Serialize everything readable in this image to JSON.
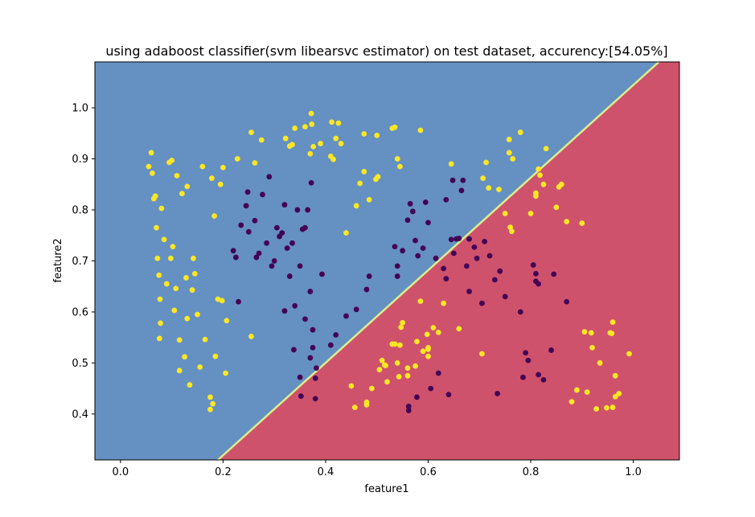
{
  "chart_data": {
    "type": "scatter",
    "title": "using adaboost classifier(svm libearsvc estimator) on test dataset, accurency:[54.05%]",
    "xlabel": "feature1",
    "ylabel": "feature2",
    "xlim": [
      -0.05,
      1.09
    ],
    "ylim": [
      0.31,
      1.09
    ],
    "xticks": [
      0.0,
      0.2,
      0.4,
      0.6,
      0.8,
      1.0
    ],
    "xtick_labels": [
      "0.0",
      "0.2",
      "0.4",
      "0.6",
      "0.8",
      "1.0"
    ],
    "yticks": [
      0.4,
      0.5,
      0.6,
      0.7,
      0.8,
      0.9,
      1.0
    ],
    "ytick_labels": [
      "0.4",
      "0.5",
      "0.6",
      "0.7",
      "0.8",
      "0.9",
      "1.0"
    ],
    "grid": false,
    "decision_regions": {
      "boundary_line": [
        [
          0.19,
          0.31
        ],
        [
          1.05,
          1.09
        ]
      ],
      "upper_left_color": "#6590c2",
      "lower_right_color": "#cf526d",
      "boundary_color": "#d9ef8b"
    },
    "series": [
      {
        "color": "#fde725",
        "points": [
          [
            0.055,
            0.885
          ],
          [
            0.06,
            0.912
          ],
          [
            0.062,
            0.872
          ],
          [
            0.065,
            0.822
          ],
          [
            0.068,
            0.827
          ],
          [
            0.07,
            0.765
          ],
          [
            0.072,
            0.705
          ],
          [
            0.075,
            0.672
          ],
          [
            0.077,
            0.625
          ],
          [
            0.078,
            0.578
          ],
          [
            0.076,
            0.548
          ],
          [
            0.085,
            0.742
          ],
          [
            0.08,
            0.803
          ],
          [
            0.09,
            0.655
          ],
          [
            0.095,
            0.893
          ],
          [
            0.098,
            0.705
          ],
          [
            0.1,
            0.897
          ],
          [
            0.102,
            0.728
          ],
          [
            0.105,
            0.603
          ],
          [
            0.108,
            0.646
          ],
          [
            0.11,
            0.867
          ],
          [
            0.115,
            0.545
          ],
          [
            0.115,
            0.485
          ],
          [
            0.12,
            0.832
          ],
          [
            0.125,
            0.512
          ],
          [
            0.128,
            0.667
          ],
          [
            0.13,
            0.587
          ],
          [
            0.13,
            0.846
          ],
          [
            0.135,
            0.457
          ],
          [
            0.14,
            0.643
          ],
          [
            0.142,
            0.705
          ],
          [
            0.145,
            0.675
          ],
          [
            0.15,
            0.595
          ],
          [
            0.155,
            0.492
          ],
          [
            0.16,
            0.885
          ],
          [
            0.165,
            0.546
          ],
          [
            0.175,
            0.433
          ],
          [
            0.175,
            0.409
          ],
          [
            0.178,
            0.862
          ],
          [
            0.18,
            0.42
          ],
          [
            0.183,
            0.788
          ],
          [
            0.185,
            0.513
          ],
          [
            0.19,
            0.625
          ],
          [
            0.195,
            0.85
          ],
          [
            0.198,
            0.622
          ],
          [
            0.2,
            0.883
          ],
          [
            0.205,
            0.48
          ],
          [
            0.207,
            0.583
          ],
          [
            0.228,
            0.9
          ],
          [
            0.255,
            0.552
          ],
          [
            0.255,
            0.952
          ],
          [
            0.262,
            0.892
          ],
          [
            0.275,
            0.937
          ],
          [
            0.322,
            0.94
          ],
          [
            0.33,
            0.925
          ],
          [
            0.335,
            0.928
          ],
          [
            0.34,
            0.96
          ],
          [
            0.36,
            0.963
          ],
          [
            0.37,
            0.91
          ],
          [
            0.372,
            0.989
          ],
          [
            0.373,
            0.968
          ],
          [
            0.376,
            0.924
          ],
          [
            0.39,
            0.93
          ],
          [
            0.41,
            0.905
          ],
          [
            0.412,
            0.972
          ],
          [
            0.415,
            0.899
          ],
          [
            0.42,
            0.94
          ],
          [
            0.425,
            0.97
          ],
          [
            0.43,
            0.93
          ],
          [
            0.44,
            0.755
          ],
          [
            0.46,
            0.808
          ],
          [
            0.467,
            0.852
          ],
          [
            0.475,
            0.949
          ],
          [
            0.475,
            0.875
          ],
          [
            0.485,
            0.82
          ],
          [
            0.498,
            0.86
          ],
          [
            0.5,
            0.946
          ],
          [
            0.502,
            0.865
          ],
          [
            0.53,
            0.96
          ],
          [
            0.535,
            0.962
          ],
          [
            0.54,
            0.9
          ],
          [
            0.545,
            0.885
          ],
          [
            0.585,
            0.956
          ],
          [
            0.45,
            0.455
          ],
          [
            0.457,
            0.413
          ],
          [
            0.48,
            0.423
          ],
          [
            0.48,
            0.418
          ],
          [
            0.49,
            0.45
          ],
          [
            0.505,
            0.487
          ],
          [
            0.51,
            0.505
          ],
          [
            0.515,
            0.496
          ],
          [
            0.517,
            0.495
          ],
          [
            0.52,
            0.463
          ],
          [
            0.53,
            0.537
          ],
          [
            0.535,
            0.537
          ],
          [
            0.54,
            0.5
          ],
          [
            0.543,
            0.473
          ],
          [
            0.545,
            0.535
          ],
          [
            0.547,
            0.57
          ],
          [
            0.55,
            0.579
          ],
          [
            0.56,
            0.49
          ],
          [
            0.56,
            0.475
          ],
          [
            0.575,
            0.494
          ],
          [
            0.578,
            0.542
          ],
          [
            0.585,
            0.621
          ],
          [
            0.59,
            0.523
          ],
          [
            0.598,
            0.556
          ],
          [
            0.6,
            0.527
          ],
          [
            0.6,
            0.53
          ],
          [
            0.6,
            0.513
          ],
          [
            0.61,
            0.569
          ],
          [
            0.62,
            0.56
          ],
          [
            0.63,
            0.617
          ],
          [
            0.645,
            0.89
          ],
          [
            0.66,
            0.567
          ],
          [
            0.705,
            0.518
          ],
          [
            0.707,
            0.862
          ],
          [
            0.713,
            0.893
          ],
          [
            0.718,
            0.843
          ],
          [
            0.738,
            0.84
          ],
          [
            0.75,
            0.793
          ],
          [
            0.758,
            0.938
          ],
          [
            0.758,
            0.912
          ],
          [
            0.76,
            0.766
          ],
          [
            0.763,
            0.758
          ],
          [
            0.765,
            0.9
          ],
          [
            0.78,
            0.952
          ],
          [
            0.8,
            0.793
          ],
          [
            0.81,
            0.833
          ],
          [
            0.81,
            0.827
          ],
          [
            0.815,
            0.88
          ],
          [
            0.818,
            0.868
          ],
          [
            0.825,
            0.85
          ],
          [
            0.83,
            0.92
          ],
          [
            0.85,
            0.805
          ],
          [
            0.855,
            0.845
          ],
          [
            0.86,
            0.85
          ],
          [
            0.87,
            0.777
          ],
          [
            0.88,
            0.424
          ],
          [
            0.89,
            0.447
          ],
          [
            0.9,
            0.774
          ],
          [
            0.905,
            0.561
          ],
          [
            0.91,
            0.443
          ],
          [
            0.918,
            0.559
          ],
          [
            0.92,
            0.53
          ],
          [
            0.928,
            0.41
          ],
          [
            0.935,
            0.5
          ],
          [
            0.948,
            0.412
          ],
          [
            0.955,
            0.559
          ],
          [
            0.958,
            0.558
          ],
          [
            0.96,
            0.413
          ],
          [
            0.96,
            0.58
          ],
          [
            0.965,
            0.475
          ],
          [
            0.965,
            0.434
          ],
          [
            0.972,
            0.44
          ],
          [
            0.992,
            0.518
          ]
        ]
      },
      {
        "color": "#440154",
        "points": [
          [
            0.22,
            0.72
          ],
          [
            0.225,
            0.707
          ],
          [
            0.23,
            0.62
          ],
          [
            0.235,
            0.77
          ],
          [
            0.245,
            0.808
          ],
          [
            0.248,
            0.835
          ],
          [
            0.25,
            0.757
          ],
          [
            0.262,
            0.779
          ],
          [
            0.265,
            0.707
          ],
          [
            0.27,
            0.715
          ],
          [
            0.277,
            0.83
          ],
          [
            0.285,
            0.735
          ],
          [
            0.29,
            0.865
          ],
          [
            0.295,
            0.69
          ],
          [
            0.3,
            0.7
          ],
          [
            0.305,
            0.765
          ],
          [
            0.31,
            0.748
          ],
          [
            0.315,
            0.755
          ],
          [
            0.32,
            0.81
          ],
          [
            0.32,
            0.602
          ],
          [
            0.325,
            0.725
          ],
          [
            0.33,
            0.67
          ],
          [
            0.335,
            0.735
          ],
          [
            0.338,
            0.526
          ],
          [
            0.34,
            0.612
          ],
          [
            0.345,
            0.8
          ],
          [
            0.35,
            0.69
          ],
          [
            0.35,
            0.472
          ],
          [
            0.352,
            0.435
          ],
          [
            0.355,
            0.762
          ],
          [
            0.36,
            0.765
          ],
          [
            0.36,
            0.586
          ],
          [
            0.365,
            0.8
          ],
          [
            0.37,
            0.64
          ],
          [
            0.37,
            0.51
          ],
          [
            0.372,
            0.853
          ],
          [
            0.375,
            0.565
          ],
          [
            0.375,
            0.53
          ],
          [
            0.38,
            0.43
          ],
          [
            0.38,
            0.47
          ],
          [
            0.382,
            0.49
          ],
          [
            0.393,
            0.674
          ],
          [
            0.41,
            0.535
          ],
          [
            0.42,
            0.555
          ],
          [
            0.44,
            0.592
          ],
          [
            0.46,
            0.605
          ],
          [
            0.48,
            0.644
          ],
          [
            0.485,
            0.67
          ],
          [
            0.535,
            0.728
          ],
          [
            0.54,
            0.69
          ],
          [
            0.54,
            0.67
          ],
          [
            0.55,
            0.72
          ],
          [
            0.56,
            0.78
          ],
          [
            0.562,
            0.415
          ],
          [
            0.562,
            0.407
          ],
          [
            0.565,
            0.812
          ],
          [
            0.57,
            0.797
          ],
          [
            0.575,
            0.74
          ],
          [
            0.578,
            0.433
          ],
          [
            0.58,
            0.71
          ],
          [
            0.59,
            0.725
          ],
          [
            0.595,
            0.815
          ],
          [
            0.6,
            0.775
          ],
          [
            0.605,
            0.45
          ],
          [
            0.615,
            0.705
          ],
          [
            0.62,
            0.48
          ],
          [
            0.63,
            0.685
          ],
          [
            0.635,
            0.665
          ],
          [
            0.635,
            0.82
          ],
          [
            0.64,
            0.438
          ],
          [
            0.645,
            0.742
          ],
          [
            0.648,
            0.858
          ],
          [
            0.65,
            0.715
          ],
          [
            0.655,
            0.743
          ],
          [
            0.66,
            0.744
          ],
          [
            0.665,
            0.838
          ],
          [
            0.668,
            0.858
          ],
          [
            0.675,
            0.69
          ],
          [
            0.68,
            0.743
          ],
          [
            0.68,
            0.64
          ],
          [
            0.69,
            0.727
          ],
          [
            0.695,
            0.705
          ],
          [
            0.705,
            0.617
          ],
          [
            0.71,
            0.738
          ],
          [
            0.72,
            0.71
          ],
          [
            0.73,
            0.663
          ],
          [
            0.735,
            0.44
          ],
          [
            0.74,
            0.68
          ],
          [
            0.75,
            0.63
          ],
          [
            0.78,
            0.6
          ],
          [
            0.785,
            0.472
          ],
          [
            0.79,
            0.52
          ],
          [
            0.795,
            0.505
          ],
          [
            0.805,
            0.692
          ],
          [
            0.81,
            0.675
          ],
          [
            0.81,
            0.66
          ],
          [
            0.815,
            0.655
          ],
          [
            0.815,
            0.477
          ],
          [
            0.825,
            0.467
          ],
          [
            0.84,
            0.525
          ],
          [
            0.845,
            0.674
          ],
          [
            0.87,
            0.62
          ]
        ]
      }
    ]
  }
}
